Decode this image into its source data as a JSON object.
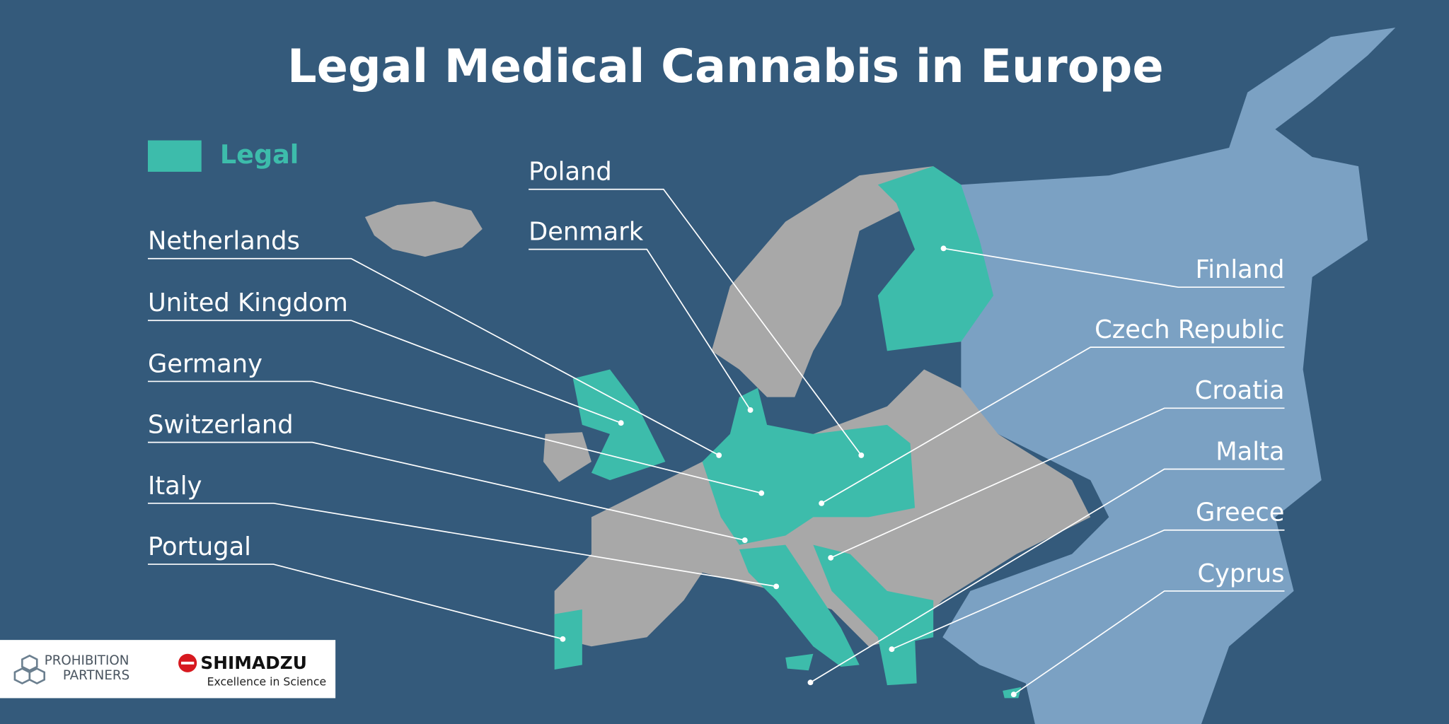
{
  "title": "Legal Medical Cannabis in Europe",
  "legend": {
    "label": "Legal"
  },
  "labels": [
    "Poland",
    "Denmark",
    "Netherlands",
    "United Kingdom",
    "Germany",
    "Switzerland",
    "Italy",
    "Portugal",
    "Finland",
    "Czech Republic",
    "Croatia",
    "Malta",
    "Greece",
    "Cyprus"
  ],
  "logos": {
    "prohibition_1": "PROHIBITION",
    "prohibition_2": "PARTNERS",
    "shimadzu": "SHIMADZU",
    "shimadzu_tagline": "Excellence in Science"
  }
}
